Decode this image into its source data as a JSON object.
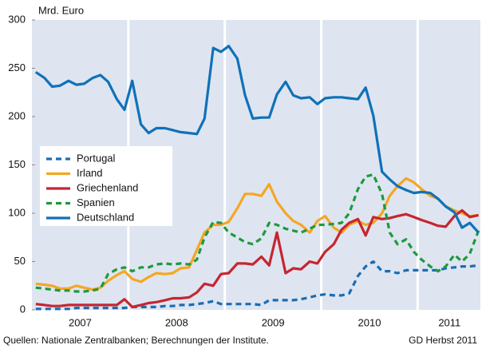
{
  "chart_data": {
    "type": "line",
    "y_label": "Mrd. Euro",
    "source": "Quellen: Nationale Zentralbanken; Berechnungen der Institute.",
    "credit": "GD Herbst 2011",
    "xlim": [
      2007,
      2011.65
    ],
    "xticks": [
      {
        "value": 2007.5,
        "label": "2007"
      },
      {
        "value": 2008.5,
        "label": "2008"
      },
      {
        "value": 2009.5,
        "label": "2009"
      },
      {
        "value": 2010.5,
        "label": "2010"
      },
      {
        "value": 2011.33,
        "label": "2011"
      }
    ],
    "xgrid": [
      2008,
      2009,
      2010,
      2011
    ],
    "ylim": [
      0,
      300
    ],
    "yticks": [
      0,
      50,
      100,
      150,
      200,
      250,
      300
    ],
    "legend": "left",
    "x": [
      2007.04,
      2007.13,
      2007.21,
      2007.29,
      2007.38,
      2007.46,
      2007.54,
      2007.63,
      2007.71,
      2007.79,
      2007.88,
      2007.96,
      2008.04,
      2008.13,
      2008.21,
      2008.29,
      2008.38,
      2008.46,
      2008.54,
      2008.63,
      2008.71,
      2008.79,
      2008.88,
      2008.96,
      2009.04,
      2009.13,
      2009.21,
      2009.29,
      2009.38,
      2009.46,
      2009.54,
      2009.63,
      2009.71,
      2009.79,
      2009.88,
      2009.96,
      2010.04,
      2010.13,
      2010.21,
      2010.29,
      2010.38,
      2010.46,
      2010.54,
      2010.63,
      2010.71,
      2010.79,
      2010.88,
      2010.96,
      2011.04,
      2011.13,
      2011.21,
      2011.29,
      2011.38,
      2011.46,
      2011.54,
      2011.63
    ],
    "series": [
      {
        "name": "Portugal",
        "color": "#1b6db3",
        "dashed": true,
        "values": [
          1,
          1,
          1,
          1,
          1,
          2,
          2,
          2,
          2,
          2,
          2,
          2,
          3,
          3,
          3,
          3,
          4,
          4,
          5,
          5,
          6,
          7,
          9,
          6,
          6,
          6,
          6,
          6,
          5,
          10,
          10,
          10,
          10,
          11,
          13,
          15,
          16,
          15,
          15,
          17,
          35,
          45,
          50,
          40,
          40,
          38,
          41,
          41,
          41,
          41,
          41,
          43,
          44,
          45,
          45,
          46
        ]
      },
      {
        "name": "Irland",
        "color": "#f5a623",
        "dashed": false,
        "values": [
          27,
          26,
          25,
          22,
          22,
          25,
          23,
          21,
          23,
          30,
          36,
          40,
          32,
          29,
          34,
          38,
          37,
          38,
          43,
          44,
          62,
          80,
          88,
          88,
          91,
          105,
          120,
          120,
          118,
          130,
          112,
          100,
          92,
          88,
          80,
          92,
          97,
          85,
          80,
          88,
          92,
          88,
          90,
          100,
          118,
          128,
          136,
          132,
          125,
          118,
          115,
          107,
          103,
          100,
          97,
          98
        ]
      },
      {
        "name": "Griechenland",
        "color": "#c62630",
        "dashed": false,
        "values": [
          6,
          5,
          4,
          4,
          5,
          5,
          5,
          5,
          5,
          5,
          5,
          11,
          3,
          5,
          7,
          8,
          10,
          12,
          12,
          13,
          18,
          27,
          25,
          37,
          38,
          48,
          48,
          47,
          55,
          46,
          80,
          38,
          43,
          42,
          50,
          48,
          60,
          68,
          83,
          90,
          94,
          77,
          96,
          94,
          95,
          97,
          99,
          96,
          93,
          90,
          87,
          86,
          97,
          103,
          96,
          98
        ]
      },
      {
        "name": "Spanien",
        "color": "#1d9a3c",
        "dashed": true,
        "values": [
          23,
          22,
          21,
          20,
          20,
          19,
          19,
          20,
          22,
          37,
          42,
          44,
          40,
          44,
          44,
          47,
          48,
          47,
          48,
          47,
          52,
          75,
          91,
          90,
          80,
          75,
          70,
          68,
          74,
          90,
          88,
          84,
          82,
          80,
          84,
          88,
          88,
          89,
          90,
          100,
          125,
          138,
          140,
          120,
          80,
          68,
          73,
          60,
          52,
          45,
          40,
          45,
          57,
          50,
          58,
          82
        ]
      },
      {
        "name": "Deutschland",
        "color": "#1071b8",
        "dashed": false,
        "values": [
          246,
          240,
          231,
          232,
          237,
          233,
          234,
          240,
          243,
          236,
          218,
          207,
          237,
          192,
          183,
          188,
          188,
          186,
          184,
          183,
          182,
          198,
          271,
          267,
          273,
          260,
          222,
          198,
          199,
          199,
          223,
          236,
          222,
          219,
          220,
          213,
          219,
          220,
          220,
          219,
          218,
          230,
          201,
          143,
          135,
          128,
          124,
          121,
          122,
          121,
          115,
          107,
          101,
          85,
          90,
          80
        ]
      }
    ]
  }
}
